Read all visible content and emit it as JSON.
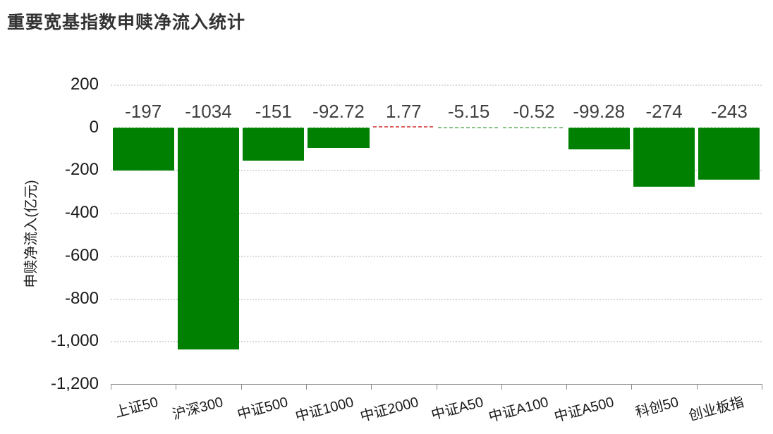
{
  "title": "重要宽基指数申赎净流入统计",
  "chart_data": {
    "type": "bar",
    "title": "重要宽基指数申赎净流入统计",
    "categories": [
      "上证50",
      "沪深300",
      "中证500",
      "中证1000",
      "中证2000",
      "中证A50",
      "中证A100",
      "中证A500",
      "科创50",
      "创业板指"
    ],
    "values": [
      -197,
      -1034,
      -151,
      -92.72,
      1.77,
      -5.15,
      -0.52,
      -99.28,
      -274,
      -243
    ],
    "value_labels": [
      "-197",
      "-1034",
      "-151",
      "-92.72",
      "1.77",
      "-5.15",
      "-0.52",
      "-99.28",
      "-274",
      "-243"
    ],
    "xlabel": "",
    "ylabel": "申赎净流入(亿元)",
    "ylim": [
      -1200,
      200
    ],
    "yticks": [
      200,
      0,
      -200,
      -400,
      -600,
      -800,
      -1000,
      -1200
    ],
    "ytick_labels": [
      "200",
      "0",
      "-200",
      "-400",
      "-600",
      "-800",
      "-1,000",
      "-1,200"
    ],
    "grid": true,
    "legend": false,
    "colors": {
      "bar_negative": "#008000",
      "bar_positive": "#dd5c5c",
      "gridline": "#d9d9d9",
      "axis": "#8c8c8c",
      "value_label": "#404040",
      "tick_label": "#1a1a1a",
      "title": "#333333"
    }
  }
}
